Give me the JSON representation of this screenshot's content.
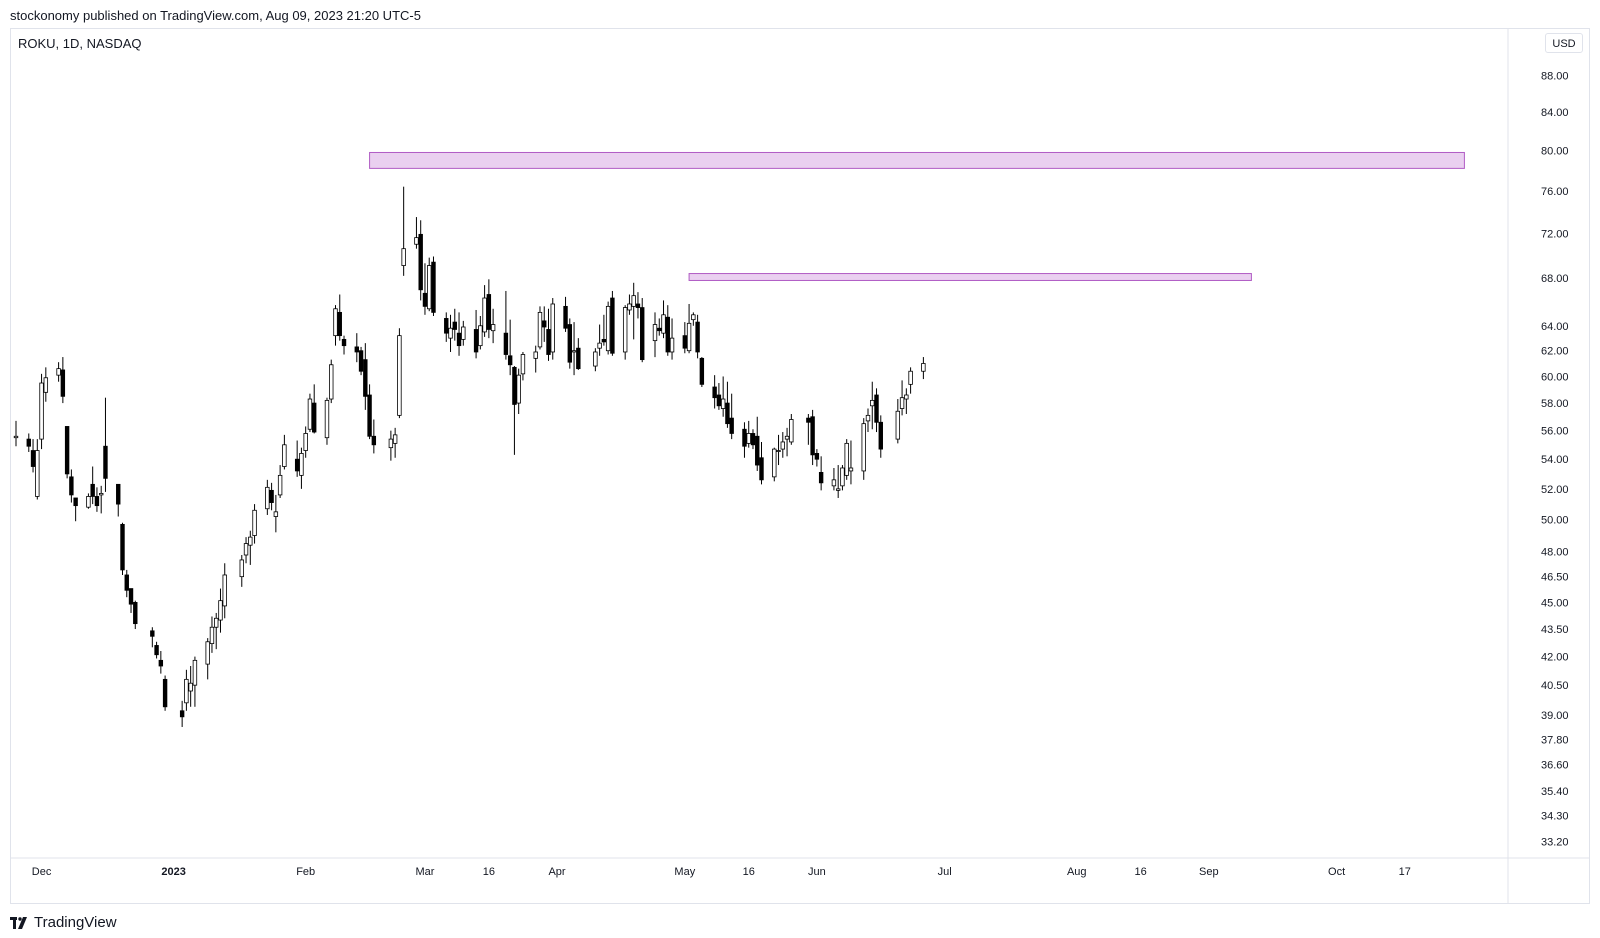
{
  "header": {
    "published_line": "stockonomy published on TradingView.com, Aug 09, 2023 21:20 UTC-5"
  },
  "symbol_line": "ROKU, 1D, NASDAQ",
  "currency": "USD",
  "footer": {
    "brand": "TradingView",
    "logo_icon": "tradingview-logo-icon"
  },
  "colors": {
    "up_candle": "#ffffff",
    "down_candle": "#000000",
    "wick": "#000000",
    "zone_fill": "#ead0f0",
    "zone_border": "#b05bc4",
    "axis_text": "#131722",
    "grid_border": "#e0e3eb"
  },
  "chart_data": {
    "type": "candlestick",
    "scale": "log",
    "ylim": [
      32.5,
      90
    ],
    "y_ticks": [
      "88.00",
      "84.00",
      "80.00",
      "76.00",
      "72.00",
      "68.00",
      "64.00",
      "62.00",
      "60.00",
      "58.00",
      "56.00",
      "54.00",
      "52.00",
      "50.00",
      "48.00",
      "46.50",
      "45.00",
      "43.50",
      "42.00",
      "40.50",
      "39.00",
      "37.80",
      "36.60",
      "35.40",
      "34.30",
      "33.20"
    ],
    "x_ticks": [
      {
        "label": "Dec",
        "date": "2022-12-01",
        "bold": false
      },
      {
        "label": "2023",
        "date": "2023-01-01",
        "bold": true
      },
      {
        "label": "Feb",
        "date": "2023-02-01",
        "bold": false
      },
      {
        "label": "Mar",
        "date": "2023-03-01",
        "bold": false
      },
      {
        "label": "16",
        "date": "2023-03-16",
        "bold": false
      },
      {
        "label": "Apr",
        "date": "2023-04-01",
        "bold": false
      },
      {
        "label": "May",
        "date": "2023-05-01",
        "bold": false
      },
      {
        "label": "16",
        "date": "2023-05-16",
        "bold": false
      },
      {
        "label": "Jun",
        "date": "2023-06-01",
        "bold": false
      },
      {
        "label": "Jul",
        "date": "2023-07-01",
        "bold": false
      },
      {
        "label": "Aug",
        "date": "2023-08-01",
        "bold": false
      },
      {
        "label": "16",
        "date": "2023-08-16",
        "bold": false
      },
      {
        "label": "Sep",
        "date": "2023-09-01",
        "bold": false
      },
      {
        "label": "Oct",
        "date": "2023-10-01",
        "bold": false
      },
      {
        "label": "17",
        "date": "2023-10-17",
        "bold": false
      }
    ],
    "zones": [
      {
        "name": "resistance-zone",
        "start": "2023-02-16",
        "end": "2023-10-31",
        "low": 78.2,
        "high": 79.8
      },
      {
        "name": "support-zone",
        "start": "2023-05-02",
        "end": "2023-09-11",
        "low": 67.8,
        "high": 68.4
      }
    ],
    "ohlc": [
      [
        "2022-11-25",
        55.5,
        56.7,
        54.9,
        55.6
      ],
      [
        "2022-11-28",
        55.4,
        55.8,
        54.5,
        54.9
      ],
      [
        "2022-11-29",
        54.6,
        55.4,
        53.1,
        53.5
      ],
      [
        "2022-11-30",
        51.5,
        55.4,
        51.3,
        54.6
      ],
      [
        "2022-12-01",
        55.4,
        60.2,
        54.7,
        59.5
      ],
      [
        "2022-12-02",
        58.8,
        60.7,
        58.1,
        59.9
      ],
      [
        "2022-12-05",
        60.1,
        61.1,
        59.6,
        60.6
      ],
      [
        "2022-12-06",
        60.5,
        61.5,
        58.0,
        58.5
      ],
      [
        "2022-12-07",
        56.3,
        56.3,
        52.7,
        53.0
      ],
      [
        "2022-12-08",
        52.8,
        53.3,
        51.1,
        51.6
      ],
      [
        "2022-12-09",
        51.4,
        51.4,
        49.9,
        50.9
      ],
      [
        "2022-12-12",
        50.8,
        51.7,
        50.7,
        51.5
      ],
      [
        "2022-12-13",
        52.3,
        53.5,
        51.0,
        51.5
      ],
      [
        "2022-12-14",
        51.5,
        52.1,
        50.5,
        50.9
      ],
      [
        "2022-12-15",
        51.6,
        52.2,
        50.4,
        51.7
      ],
      [
        "2022-12-16",
        54.9,
        58.4,
        51.8,
        52.7
      ],
      [
        "2022-12-19",
        52.3,
        52.3,
        50.2,
        51.0
      ],
      [
        "2022-12-20",
        49.7,
        49.8,
        46.6,
        46.9
      ],
      [
        "2022-12-21",
        46.6,
        46.9,
        45.3,
        45.7
      ],
      [
        "2022-12-22",
        45.8,
        45.8,
        44.4,
        44.9
      ],
      [
        "2022-12-23",
        45.0,
        45.1,
        43.5,
        43.8
      ],
      [
        "2022-12-27",
        43.4,
        43.6,
        42.5,
        43.1
      ],
      [
        "2022-12-28",
        42.6,
        42.8,
        41.9,
        42.1
      ],
      [
        "2022-12-29",
        41.8,
        42.3,
        41.1,
        41.5
      ],
      [
        "2022-12-30",
        40.8,
        41.0,
        39.2,
        39.4
      ],
      [
        "2023-01-03",
        39.2,
        39.7,
        38.4,
        38.9
      ],
      [
        "2023-01-04",
        39.6,
        41.3,
        39.2,
        40.8
      ],
      [
        "2023-01-05",
        40.2,
        41.5,
        39.4,
        40.6
      ],
      [
        "2023-01-06",
        40.5,
        42.0,
        39.4,
        41.8
      ],
      [
        "2023-01-09",
        41.6,
        43.0,
        40.8,
        42.8
      ],
      [
        "2023-01-10",
        42.7,
        44.2,
        42.2,
        43.6
      ],
      [
        "2023-01-11",
        43.6,
        44.4,
        42.4,
        44.1
      ],
      [
        "2023-01-12",
        44.0,
        45.8,
        43.3,
        45.1
      ],
      [
        "2023-01-13",
        44.8,
        47.3,
        44.1,
        46.6
      ],
      [
        "2023-01-17",
        46.5,
        47.8,
        45.9,
        47.5
      ],
      [
        "2023-01-18",
        47.8,
        48.9,
        47.3,
        48.5
      ],
      [
        "2023-01-19",
        48.4,
        49.3,
        47.2,
        48.9
      ],
      [
        "2023-01-20",
        49.0,
        51.0,
        48.5,
        50.6
      ],
      [
        "2023-01-23",
        50.7,
        52.6,
        50.3,
        52.1
      ],
      [
        "2023-01-24",
        51.9,
        52.4,
        50.6,
        51.1
      ],
      [
        "2023-01-25",
        50.2,
        51.6,
        49.2,
        50.5
      ],
      [
        "2023-01-26",
        51.6,
        53.6,
        51.4,
        52.9
      ],
      [
        "2023-01-27",
        53.5,
        55.7,
        53.3,
        55.0
      ],
      [
        "2023-01-30",
        54.0,
        55.3,
        52.8,
        53.2
      ],
      [
        "2023-01-31",
        52.9,
        54.8,
        52.0,
        54.4
      ],
      [
        "2023-02-01",
        54.6,
        56.3,
        54.1,
        55.8
      ],
      [
        "2023-02-02",
        56.1,
        58.7,
        55.9,
        58.3
      ],
      [
        "2023-02-03",
        58.0,
        59.4,
        55.8,
        55.9
      ],
      [
        "2023-02-06",
        55.5,
        58.4,
        55.0,
        58.2
      ],
      [
        "2023-02-07",
        58.3,
        61.3,
        58.0,
        60.9
      ],
      [
        "2023-02-08",
        63.2,
        65.7,
        62.4,
        65.4
      ],
      [
        "2023-02-09",
        65.1,
        66.6,
        62.8,
        63.2
      ],
      [
        "2023-02-10",
        62.9,
        63.2,
        61.7,
        62.4
      ],
      [
        "2023-02-13",
        62.3,
        63.4,
        61.1,
        61.9
      ],
      [
        "2023-02-14",
        62.0,
        62.3,
        60.1,
        60.4
      ],
      [
        "2023-02-15",
        61.3,
        62.6,
        57.5,
        58.5
      ],
      [
        "2023-02-16",
        58.6,
        59.4,
        55.4,
        55.6
      ],
      [
        "2023-02-17",
        55.6,
        56.8,
        54.4,
        55.0
      ],
      [
        "2023-02-21",
        54.8,
        56.0,
        53.9,
        55.4
      ],
      [
        "2023-02-22",
        55.1,
        56.2,
        54.1,
        55.7
      ],
      [
        "2023-02-23",
        57.1,
        63.8,
        56.9,
        63.2
      ],
      [
        "2023-02-24",
        69.1,
        76.4,
        68.2,
        70.6
      ],
      [
        "2023-02-27",
        71.0,
        73.5,
        70.6,
        71.6
      ],
      [
        "2023-02-28",
        71.9,
        73.2,
        66.1,
        67.0
      ],
      [
        "2023-03-01",
        66.7,
        69.3,
        64.9,
        65.6
      ],
      [
        "2023-03-02",
        65.4,
        69.8,
        65.2,
        69.1
      ],
      [
        "2023-03-03",
        69.4,
        69.9,
        64.8,
        65.1
      ],
      [
        "2023-03-06",
        64.6,
        65.1,
        62.7,
        63.4
      ],
      [
        "2023-03-07",
        63.0,
        64.9,
        61.9,
        63.8
      ],
      [
        "2023-03-08",
        64.3,
        65.4,
        62.8,
        63.7
      ],
      [
        "2023-03-09",
        63.4,
        65.1,
        61.6,
        62.4
      ],
      [
        "2023-03-10",
        62.9,
        64.4,
        62.4,
        63.9
      ],
      [
        "2023-03-13",
        63.7,
        65.3,
        61.4,
        61.9
      ],
      [
        "2023-03-14",
        62.4,
        64.8,
        62.1,
        64.0
      ],
      [
        "2023-03-15",
        63.5,
        67.4,
        63.1,
        66.3
      ],
      [
        "2023-03-16",
        66.6,
        67.9,
        63.0,
        63.7
      ],
      [
        "2023-03-17",
        63.6,
        65.4,
        62.6,
        64.1
      ],
      [
        "2023-03-20",
        63.4,
        66.9,
        61.3,
        61.7
      ],
      [
        "2023-03-21",
        61.6,
        64.5,
        60.1,
        60.9
      ],
      [
        "2023-03-22",
        60.7,
        60.8,
        54.3,
        57.9
      ],
      [
        "2023-03-23",
        58.0,
        60.6,
        57.2,
        60.1
      ],
      [
        "2023-03-24",
        60.2,
        61.9,
        59.7,
        61.7
      ],
      [
        "2023-03-27",
        61.4,
        62.4,
        60.3,
        61.9
      ],
      [
        "2023-03-28",
        62.3,
        65.6,
        62.1,
        65.1
      ],
      [
        "2023-03-29",
        64.4,
        65.6,
        62.7,
        63.9
      ],
      [
        "2023-03-30",
        63.7,
        65.4,
        61.2,
        61.7
      ],
      [
        "2023-03-31",
        61.9,
        66.3,
        61.3,
        65.8
      ],
      [
        "2023-04-03",
        65.6,
        66.4,
        63.5,
        63.8
      ],
      [
        "2023-04-04",
        64.1,
        64.6,
        60.6,
        61.1
      ],
      [
        "2023-04-05",
        61.9,
        64.3,
        60.1,
        62.0
      ],
      [
        "2023-04-06",
        62.2,
        63.0,
        60.5,
        60.6
      ],
      [
        "2023-04-10",
        60.8,
        62.2,
        60.4,
        61.9
      ],
      [
        "2023-04-11",
        62.2,
        64.1,
        61.6,
        62.6
      ],
      [
        "2023-04-12",
        62.9,
        64.9,
        62.4,
        62.7
      ],
      [
        "2023-04-13",
        62.0,
        66.0,
        61.7,
        65.6
      ],
      [
        "2023-04-14",
        66.3,
        66.9,
        61.6,
        61.8
      ],
      [
        "2023-04-17",
        61.9,
        65.7,
        61.3,
        65.5
      ],
      [
        "2023-04-18",
        65.3,
        66.6,
        64.9,
        65.8
      ],
      [
        "2023-04-19",
        65.6,
        67.6,
        62.9,
        66.5
      ],
      [
        "2023-04-20",
        65.8,
        66.8,
        64.6,
        65.5
      ],
      [
        "2023-04-21",
        65.5,
        66.3,
        61.1,
        61.3
      ],
      [
        "2023-04-24",
        62.8,
        65.1,
        61.5,
        64.1
      ],
      [
        "2023-04-25",
        63.8,
        64.6,
        63.2,
        63.6
      ],
      [
        "2023-04-26",
        63.4,
        66.1,
        63.0,
        64.9
      ],
      [
        "2023-04-27",
        64.7,
        65.7,
        61.6,
        61.9
      ],
      [
        "2023-04-28",
        61.9,
        64.6,
        61.3,
        63.0
      ],
      [
        "2023-05-01",
        63.2,
        64.3,
        61.8,
        62.2
      ],
      [
        "2023-05-02",
        62.0,
        65.8,
        61.8,
        64.2
      ],
      [
        "2023-05-03",
        64.5,
        65.1,
        64.0,
        64.9
      ],
      [
        "2023-05-04",
        64.3,
        64.9,
        61.4,
        61.9
      ],
      [
        "2023-05-05",
        61.4,
        61.5,
        59.2,
        59.4
      ],
      [
        "2023-05-08",
        59.2,
        60.1,
        57.6,
        58.4
      ],
      [
        "2023-05-09",
        58.6,
        59.5,
        57.5,
        57.8
      ],
      [
        "2023-05-10",
        57.6,
        60.0,
        57.0,
        58.3
      ],
      [
        "2023-05-11",
        58.0,
        59.6,
        56.2,
        56.5
      ],
      [
        "2023-05-12",
        56.9,
        58.7,
        55.4,
        55.8
      ],
      [
        "2023-05-15",
        56.1,
        56.6,
        54.1,
        54.9
      ],
      [
        "2023-05-16",
        55.1,
        56.7,
        54.8,
        55.8
      ],
      [
        "2023-05-17",
        55.8,
        56.1,
        54.7,
        55.0
      ],
      [
        "2023-05-18",
        55.6,
        57.0,
        53.2,
        53.6
      ],
      [
        "2023-05-19",
        54.1,
        55.2,
        52.3,
        52.6
      ],
      [
        "2023-05-22",
        52.8,
        54.8,
        52.5,
        54.7
      ],
      [
        "2023-05-23",
        54.6,
        55.7,
        53.6,
        54.6
      ],
      [
        "2023-05-24",
        54.7,
        55.9,
        54.1,
        55.2
      ],
      [
        "2023-05-25",
        55.4,
        56.2,
        54.2,
        55.6
      ],
      [
        "2023-05-26",
        55.2,
        57.2,
        55.0,
        56.8
      ],
      [
        "2023-05-30",
        56.9,
        57.2,
        55.0,
        56.6
      ],
      [
        "2023-05-31",
        57.0,
        57.5,
        53.6,
        54.3
      ],
      [
        "2023-06-01",
        54.4,
        54.7,
        53.5,
        54.0
      ],
      [
        "2023-06-02",
        53.1,
        54.2,
        51.9,
        52.4
      ],
      [
        "2023-06-05",
        52.2,
        53.4,
        51.9,
        52.6
      ],
      [
        "2023-06-06",
        51.9,
        53.6,
        51.4,
        52.0
      ],
      [
        "2023-06-07",
        52.2,
        53.6,
        51.9,
        53.4
      ],
      [
        "2023-06-08",
        52.9,
        55.4,
        52.6,
        55.1
      ],
      [
        "2023-06-09",
        53.2,
        55.3,
        52.3,
        53.4
      ],
      [
        "2023-06-12",
        53.2,
        56.9,
        52.6,
        56.5
      ],
      [
        "2023-06-13",
        56.7,
        57.6,
        55.9,
        57.1
      ],
      [
        "2023-06-14",
        57.8,
        59.6,
        56.1,
        58.2
      ],
      [
        "2023-06-15",
        58.6,
        59.1,
        55.9,
        56.6
      ],
      [
        "2023-06-16",
        56.6,
        57.1,
        54.1,
        54.7
      ],
      [
        "2023-06-20",
        55.4,
        58.3,
        55.1,
        57.4
      ],
      [
        "2023-06-21",
        57.6,
        59.7,
        57.1,
        58.4
      ],
      [
        "2023-06-22",
        58.3,
        59.1,
        57.2,
        58.6
      ],
      [
        "2023-06-23",
        59.4,
        60.7,
        58.7,
        60.4
      ],
      [
        "2023-06-26",
        60.4,
        61.5,
        59.8,
        61.0
      ]
    ]
  }
}
